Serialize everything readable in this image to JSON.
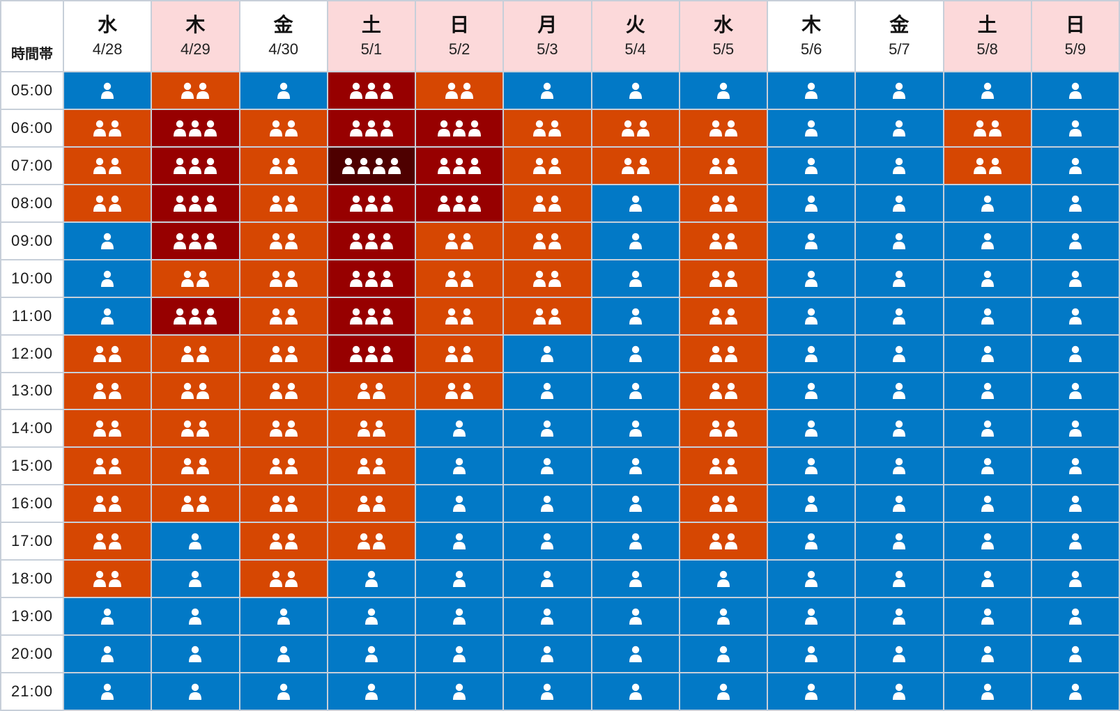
{
  "corner_label": "時間帯",
  "colors": {
    "level_1": "#0279c6",
    "level_2": "#d64702",
    "level_3": "#970000",
    "level_4": "#4e0000",
    "holiday_header": "#fcd9da",
    "icon": "#ffffff"
  },
  "icon_name": "person-icon",
  "columns": [
    {
      "dow": "水",
      "date": "4/28",
      "holiday": false
    },
    {
      "dow": "木",
      "date": "4/29",
      "holiday": true
    },
    {
      "dow": "金",
      "date": "4/30",
      "holiday": false
    },
    {
      "dow": "土",
      "date": "5/1",
      "holiday": true
    },
    {
      "dow": "日",
      "date": "5/2",
      "holiday": true
    },
    {
      "dow": "月",
      "date": "5/3",
      "holiday": true
    },
    {
      "dow": "火",
      "date": "5/4",
      "holiday": true
    },
    {
      "dow": "水",
      "date": "5/5",
      "holiday": true
    },
    {
      "dow": "木",
      "date": "5/6",
      "holiday": false
    },
    {
      "dow": "金",
      "date": "5/7",
      "holiday": false
    },
    {
      "dow": "土",
      "date": "5/8",
      "holiday": true
    },
    {
      "dow": "日",
      "date": "5/9",
      "holiday": true
    }
  ],
  "chart_data": {
    "type": "heatmap",
    "title": "",
    "x_label": "",
    "y_label": "時間帯",
    "legend": "none",
    "grid": true,
    "x_categories": [
      "4/28",
      "4/29",
      "4/30",
      "5/1",
      "5/2",
      "5/3",
      "5/4",
      "5/5",
      "5/6",
      "5/7",
      "5/8",
      "5/9"
    ],
    "y_categories": [
      "05:00",
      "06:00",
      "07:00",
      "08:00",
      "09:00",
      "10:00",
      "11:00",
      "12:00",
      "13:00",
      "14:00",
      "15:00",
      "16:00",
      "17:00",
      "18:00",
      "19:00",
      "20:00",
      "21:00"
    ],
    "values": [
      [
        1,
        2,
        1,
        3,
        2,
        1,
        1,
        1,
        1,
        1,
        1,
        1
      ],
      [
        2,
        3,
        2,
        3,
        3,
        2,
        2,
        2,
        1,
        1,
        2,
        1
      ],
      [
        2,
        3,
        2,
        4,
        3,
        2,
        2,
        2,
        1,
        1,
        2,
        1
      ],
      [
        2,
        3,
        2,
        3,
        3,
        2,
        1,
        2,
        1,
        1,
        1,
        1
      ],
      [
        1,
        3,
        2,
        3,
        2,
        2,
        1,
        2,
        1,
        1,
        1,
        1
      ],
      [
        1,
        2,
        2,
        3,
        2,
        2,
        1,
        2,
        1,
        1,
        1,
        1
      ],
      [
        1,
        3,
        2,
        3,
        2,
        2,
        1,
        2,
        1,
        1,
        1,
        1
      ],
      [
        2,
        2,
        2,
        3,
        2,
        1,
        1,
        2,
        1,
        1,
        1,
        1
      ],
      [
        2,
        2,
        2,
        2,
        2,
        1,
        1,
        2,
        1,
        1,
        1,
        1
      ],
      [
        2,
        2,
        2,
        2,
        1,
        1,
        1,
        2,
        1,
        1,
        1,
        1
      ],
      [
        2,
        2,
        2,
        2,
        1,
        1,
        1,
        2,
        1,
        1,
        1,
        1
      ],
      [
        2,
        2,
        2,
        2,
        1,
        1,
        1,
        2,
        1,
        1,
        1,
        1
      ],
      [
        2,
        1,
        2,
        2,
        1,
        1,
        1,
        2,
        1,
        1,
        1,
        1
      ],
      [
        2,
        1,
        2,
        1,
        1,
        1,
        1,
        1,
        1,
        1,
        1,
        1
      ],
      [
        1,
        1,
        1,
        1,
        1,
        1,
        1,
        1,
        1,
        1,
        1,
        1
      ],
      [
        1,
        1,
        1,
        1,
        1,
        1,
        1,
        1,
        1,
        1,
        1,
        1
      ],
      [
        1,
        1,
        1,
        1,
        1,
        1,
        1,
        1,
        1,
        1,
        1,
        1
      ]
    ]
  }
}
